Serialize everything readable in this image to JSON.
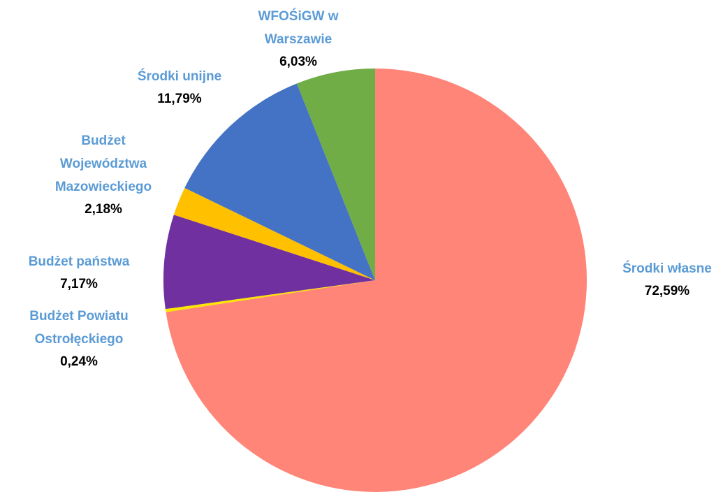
{
  "chart_data": {
    "type": "pie",
    "categories": [
      [
        "Środki własne"
      ],
      [
        "Budżet Powiatu",
        "Ostrołęckiego"
      ],
      [
        "Budżet państwa"
      ],
      [
        "Budżet",
        "Województwa",
        "Mazowieckiego"
      ],
      [
        "Środki unijne"
      ],
      [
        "WFOŚiGW w",
        "Warszawie"
      ]
    ],
    "values": [
      72.59,
      0.24,
      7.17,
      2.18,
      11.79,
      6.03
    ],
    "value_labels": [
      "72,59%",
      "0,24%",
      "7,17%",
      "2,18%",
      "11,79%",
      "6,03%"
    ],
    "colors": [
      "#FF8578",
      "#FFE600",
      "#7030A0",
      "#FFC000",
      "#4472C4",
      "#70AD47"
    ]
  }
}
